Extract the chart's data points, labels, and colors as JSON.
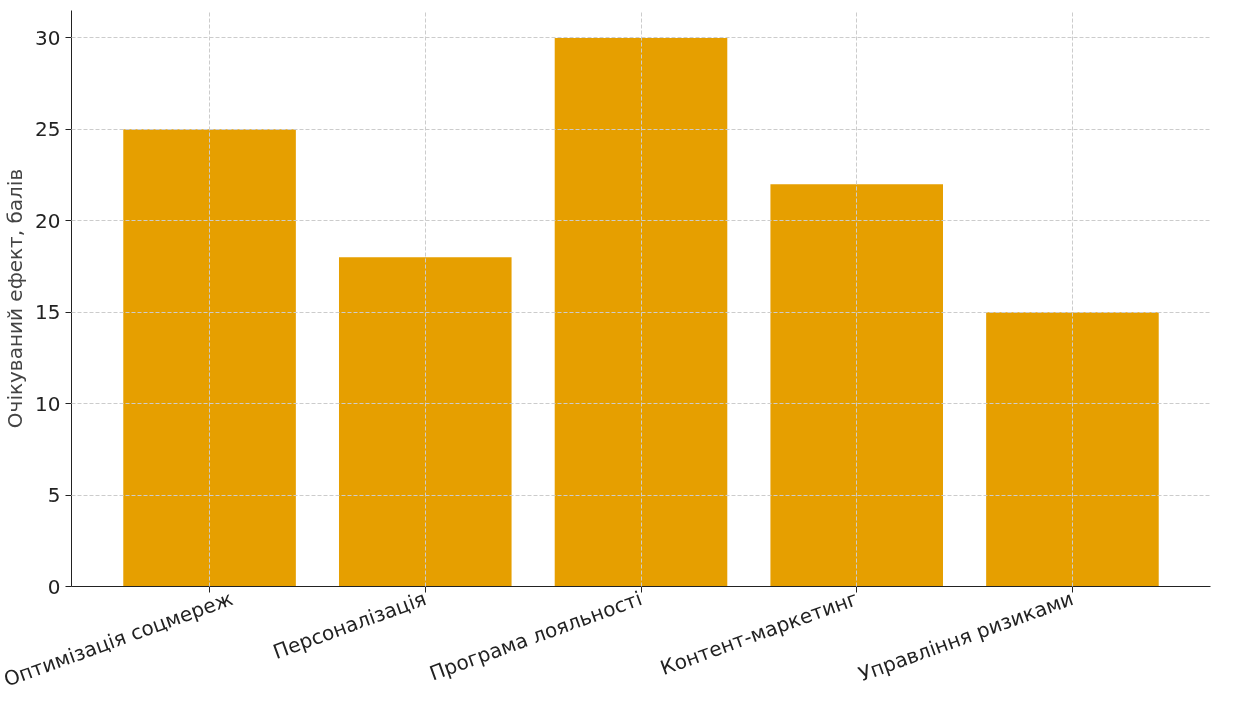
{
  "chart_data": {
    "type": "bar",
    "ylabel": "Очікуваний ефект, балів",
    "categories": [
      "Оптимізація соцмереж",
      "Персоналізація",
      "Програма лояльності",
      "Контент-маркетинг",
      "Управління ризиками"
    ],
    "values": [
      25,
      18,
      30,
      22,
      15
    ],
    "color": "#e69f00",
    "ylim": [
      0,
      31.5
    ],
    "yticks": [
      0,
      5,
      10,
      15,
      20,
      25,
      30
    ],
    "grid": true
  }
}
